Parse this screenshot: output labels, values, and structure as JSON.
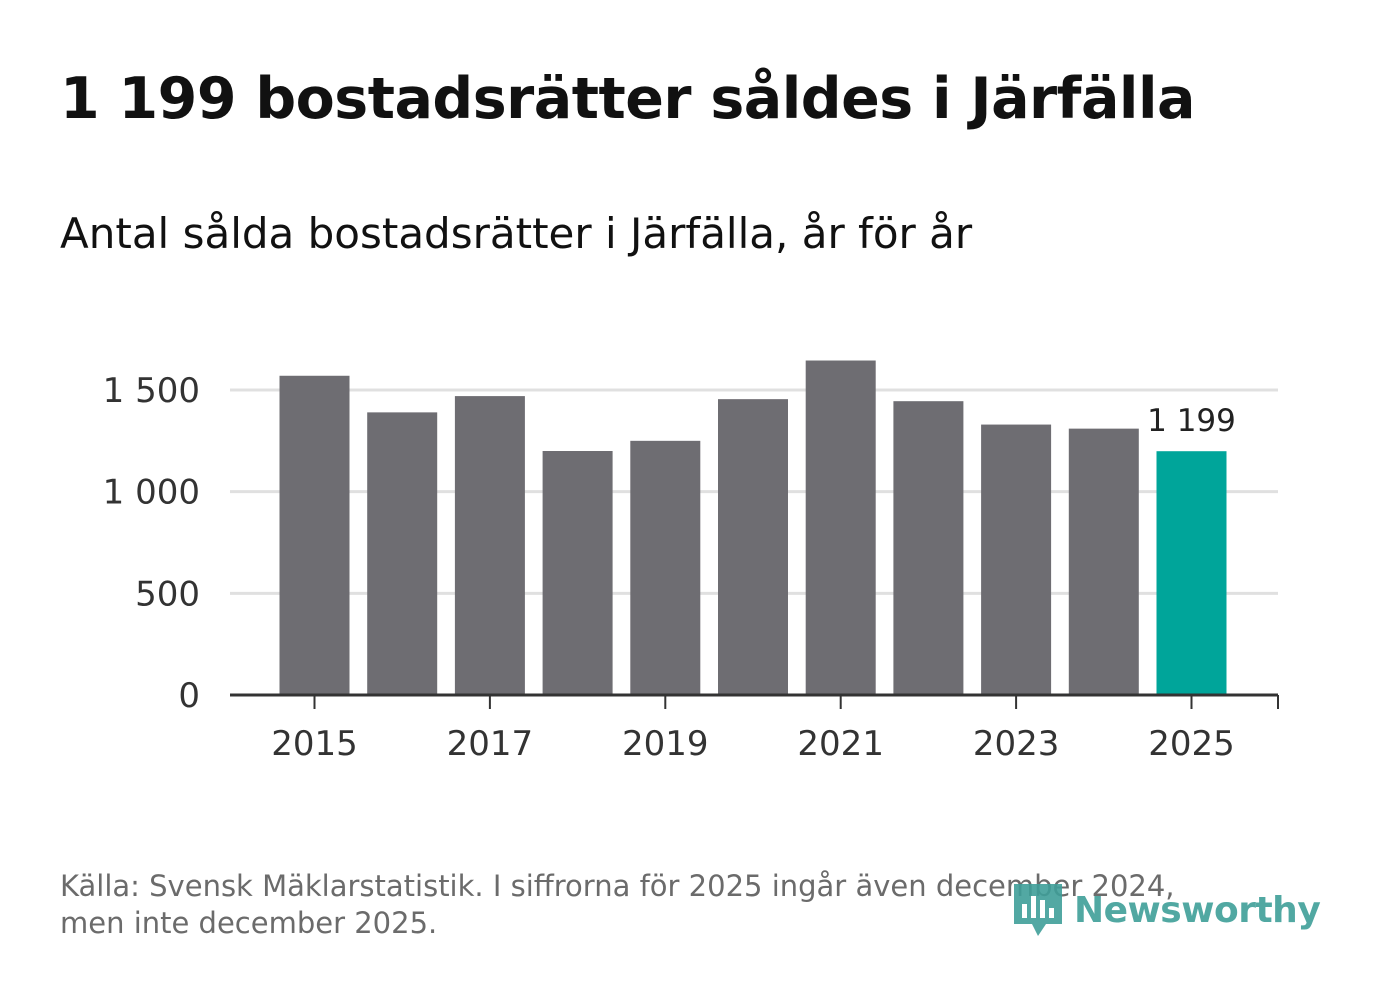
{
  "title": "1 199 bostadsrätter såldes i Järfälla",
  "subtitle": "Antal sålda bostadsrätter i Järfälla, år för år",
  "chart_data": {
    "type": "bar",
    "categories": [
      "2015",
      "2016",
      "2017",
      "2018",
      "2019",
      "2020",
      "2021",
      "2022",
      "2023",
      "2024",
      "2025"
    ],
    "values": [
      1570,
      1390,
      1470,
      1200,
      1250,
      1455,
      1645,
      1445,
      1330,
      1310,
      1199
    ],
    "highlight_index": 10,
    "highlight_label": "1 199",
    "x_tick_labels": [
      "2015",
      "2017",
      "2019",
      "2021",
      "2023",
      "2025"
    ],
    "y_ticks": [
      0,
      500,
      1000,
      1500
    ],
    "y_tick_labels": [
      "0",
      "500",
      "1 000",
      "1 500"
    ],
    "ylim": [
      0,
      1700
    ],
    "grid": true,
    "colors": {
      "bar": "#6e6d72",
      "highlight": "#00a59a",
      "grid": "#e0e0e0",
      "axis": "#333333"
    }
  },
  "footer": {
    "line1": "Källa: Svensk Mäklarstatistik. I siffrorna för 2025 ingår även december 2024,",
    "line2": "men inte december 2025."
  },
  "logo": {
    "text": "Newsworthy",
    "icon": "newsworthy-logo-icon"
  }
}
